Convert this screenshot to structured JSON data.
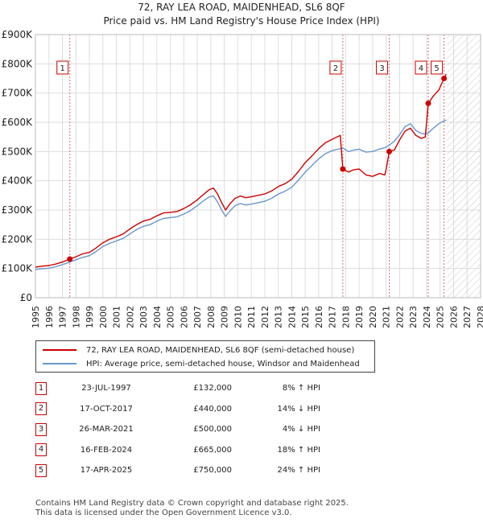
{
  "title": "72, RAY LEA ROAD, MAIDENHEAD, SL6 8QF",
  "subtitle": "Price paid vs. HM Land Registry's House Price Index (HPI)",
  "colors": {
    "property": "#cc0000",
    "hpi": "#6a96cc",
    "grid": "#dddddd",
    "marker_border": "#cc0000"
  },
  "chart_data": {
    "type": "line",
    "x_range": [
      1995,
      2028
    ],
    "y_range": [
      0,
      900000
    ],
    "y_ticks": [
      {
        "value": 0,
        "label": "£0"
      },
      {
        "value": 100000,
        "label": "£100K"
      },
      {
        "value": 200000,
        "label": "£200K"
      },
      {
        "value": 300000,
        "label": "£300K"
      },
      {
        "value": 400000,
        "label": "£400K"
      },
      {
        "value": 500000,
        "label": "£500K"
      },
      {
        "value": 600000,
        "label": "£600K"
      },
      {
        "value": 700000,
        "label": "£700K"
      },
      {
        "value": 800000,
        "label": "£800K"
      },
      {
        "value": 900000,
        "label": "£900K"
      }
    ],
    "x_ticks": [
      "1995",
      "1996",
      "1997",
      "1998",
      "1999",
      "2000",
      "2001",
      "2002",
      "2003",
      "2004",
      "2005",
      "2006",
      "2007",
      "2008",
      "2009",
      "2010",
      "2011",
      "2012",
      "2013",
      "2014",
      "2015",
      "2016",
      "2017",
      "2018",
      "2019",
      "2020",
      "2021",
      "2022",
      "2023",
      "2024",
      "2025",
      "2026",
      "2027",
      "2028"
    ],
    "forecast_start": 2025.5,
    "series": [
      {
        "name": "72, RAY LEA ROAD, MAIDENHEAD, SL6 8QF (semi-detached house)",
        "color": "#cc0000",
        "points": [
          [
            1995.0,
            105000
          ],
          [
            1995.5,
            108000
          ],
          [
            1996.0,
            110000
          ],
          [
            1996.5,
            115000
          ],
          [
            1997.0,
            122000
          ],
          [
            1997.55,
            132000
          ],
          [
            1998.0,
            140000
          ],
          [
            1998.5,
            150000
          ],
          [
            1999.0,
            155000
          ],
          [
            1999.5,
            170000
          ],
          [
            2000.0,
            188000
          ],
          [
            2000.5,
            200000
          ],
          [
            2001.0,
            208000
          ],
          [
            2001.5,
            218000
          ],
          [
            2002.0,
            235000
          ],
          [
            2002.5,
            250000
          ],
          [
            2003.0,
            262000
          ],
          [
            2003.5,
            268000
          ],
          [
            2004.0,
            280000
          ],
          [
            2004.5,
            290000
          ],
          [
            2005.0,
            292000
          ],
          [
            2005.5,
            295000
          ],
          [
            2006.0,
            305000
          ],
          [
            2006.5,
            318000
          ],
          [
            2007.0,
            335000
          ],
          [
            2007.5,
            355000
          ],
          [
            2007.9,
            370000
          ],
          [
            2008.2,
            375000
          ],
          [
            2008.5,
            355000
          ],
          [
            2008.8,
            325000
          ],
          [
            2009.1,
            300000
          ],
          [
            2009.4,
            320000
          ],
          [
            2009.8,
            340000
          ],
          [
            2010.2,
            348000
          ],
          [
            2010.6,
            342000
          ],
          [
            2011.0,
            345000
          ],
          [
            2011.5,
            350000
          ],
          [
            2012.0,
            355000
          ],
          [
            2012.5,
            365000
          ],
          [
            2013.0,
            380000
          ],
          [
            2013.5,
            390000
          ],
          [
            2014.0,
            405000
          ],
          [
            2014.5,
            432000
          ],
          [
            2015.0,
            462000
          ],
          [
            2015.5,
            485000
          ],
          [
            2016.0,
            510000
          ],
          [
            2016.5,
            530000
          ],
          [
            2017.0,
            542000
          ],
          [
            2017.6,
            555000
          ],
          [
            2017.79,
            440000
          ],
          [
            2018.2,
            430000
          ],
          [
            2018.6,
            438000
          ],
          [
            2019.0,
            440000
          ],
          [
            2019.5,
            420000
          ],
          [
            2020.0,
            415000
          ],
          [
            2020.5,
            425000
          ],
          [
            2020.9,
            420000
          ],
          [
            2021.0,
            440000
          ],
          [
            2021.23,
            500000
          ],
          [
            2021.6,
            505000
          ],
          [
            2022.0,
            540000
          ],
          [
            2022.4,
            570000
          ],
          [
            2022.8,
            580000
          ],
          [
            2023.2,
            555000
          ],
          [
            2023.6,
            545000
          ],
          [
            2023.9,
            550000
          ],
          [
            2024.12,
            665000
          ],
          [
            2024.5,
            690000
          ],
          [
            2024.9,
            710000
          ],
          [
            2025.29,
            750000
          ],
          [
            2025.45,
            765000
          ]
        ]
      },
      {
        "name": "HPI: Average price, semi-detached house, Windsor and Maidenhead",
        "color": "#6a96cc",
        "points": [
          [
            1995.0,
            97000
          ],
          [
            1995.5,
            99000
          ],
          [
            1996.0,
            101000
          ],
          [
            1996.5,
            106000
          ],
          [
            1997.0,
            113000
          ],
          [
            1997.55,
            122000
          ],
          [
            1998.0,
            130000
          ],
          [
            1998.5,
            138000
          ],
          [
            1999.0,
            144000
          ],
          [
            1999.5,
            158000
          ],
          [
            2000.0,
            175000
          ],
          [
            2000.5,
            186000
          ],
          [
            2001.0,
            194000
          ],
          [
            2001.5,
            203000
          ],
          [
            2002.0,
            218000
          ],
          [
            2002.5,
            233000
          ],
          [
            2003.0,
            244000
          ],
          [
            2003.5,
            250000
          ],
          [
            2004.0,
            262000
          ],
          [
            2004.5,
            271000
          ],
          [
            2005.0,
            274000
          ],
          [
            2005.5,
            277000
          ],
          [
            2006.0,
            286000
          ],
          [
            2006.5,
            298000
          ],
          [
            2007.0,
            315000
          ],
          [
            2007.5,
            333000
          ],
          [
            2007.9,
            345000
          ],
          [
            2008.2,
            348000
          ],
          [
            2008.5,
            328000
          ],
          [
            2008.8,
            300000
          ],
          [
            2009.1,
            278000
          ],
          [
            2009.4,
            296000
          ],
          [
            2009.8,
            315000
          ],
          [
            2010.2,
            322000
          ],
          [
            2010.6,
            317000
          ],
          [
            2011.0,
            320000
          ],
          [
            2011.5,
            325000
          ],
          [
            2012.0,
            330000
          ],
          [
            2012.5,
            340000
          ],
          [
            2013.0,
            354000
          ],
          [
            2013.5,
            364000
          ],
          [
            2014.0,
            378000
          ],
          [
            2014.5,
            402000
          ],
          [
            2015.0,
            430000
          ],
          [
            2015.5,
            452000
          ],
          [
            2016.0,
            475000
          ],
          [
            2016.5,
            493000
          ],
          [
            2017.0,
            503000
          ],
          [
            2017.79,
            512000
          ],
          [
            2018.2,
            500000
          ],
          [
            2018.6,
            505000
          ],
          [
            2019.0,
            508000
          ],
          [
            2019.5,
            498000
          ],
          [
            2020.0,
            500000
          ],
          [
            2020.5,
            508000
          ],
          [
            2021.0,
            515000
          ],
          [
            2021.23,
            522000
          ],
          [
            2021.6,
            535000
          ],
          [
            2022.0,
            558000
          ],
          [
            2022.4,
            585000
          ],
          [
            2022.8,
            595000
          ],
          [
            2023.2,
            572000
          ],
          [
            2023.6,
            562000
          ],
          [
            2023.9,
            560000
          ],
          [
            2024.12,
            563000
          ],
          [
            2024.5,
            580000
          ],
          [
            2024.9,
            595000
          ],
          [
            2025.29,
            605000
          ],
          [
            2025.45,
            608000
          ]
        ]
      }
    ],
    "sales": [
      {
        "num": "1",
        "x": 1997.55,
        "price": 132000
      },
      {
        "num": "2",
        "x": 2017.79,
        "price": 440000
      },
      {
        "num": "3",
        "x": 2021.23,
        "price": 500000
      },
      {
        "num": "4",
        "x": 2024.12,
        "price": 665000
      },
      {
        "num": "5",
        "x": 2025.29,
        "price": 750000
      }
    ]
  },
  "legend": {
    "property_label": "72, RAY LEA ROAD, MAIDENHEAD, SL6 8QF (semi-detached house)",
    "hpi_label": "HPI: Average price, semi-detached house, Windsor and Maidenhead"
  },
  "table": [
    {
      "num": "1",
      "date": "23-JUL-1997",
      "price": "£132,000",
      "hpi": "8% ↑ HPI"
    },
    {
      "num": "2",
      "date": "17-OCT-2017",
      "price": "£440,000",
      "hpi": "14% ↓ HPI"
    },
    {
      "num": "3",
      "date": "26-MAR-2021",
      "price": "£500,000",
      "hpi": "4% ↓ HPI"
    },
    {
      "num": "4",
      "date": "16-FEB-2024",
      "price": "£665,000",
      "hpi": "18% ↑ HPI"
    },
    {
      "num": "5",
      "date": "17-APR-2025",
      "price": "£750,000",
      "hpi": "24% ↑ HPI"
    }
  ],
  "footer": {
    "line1": "Contains HM Land Registry data © Crown copyright and database right 2025.",
    "line2": "This data is licensed under the Open Government Licence v3.0."
  }
}
